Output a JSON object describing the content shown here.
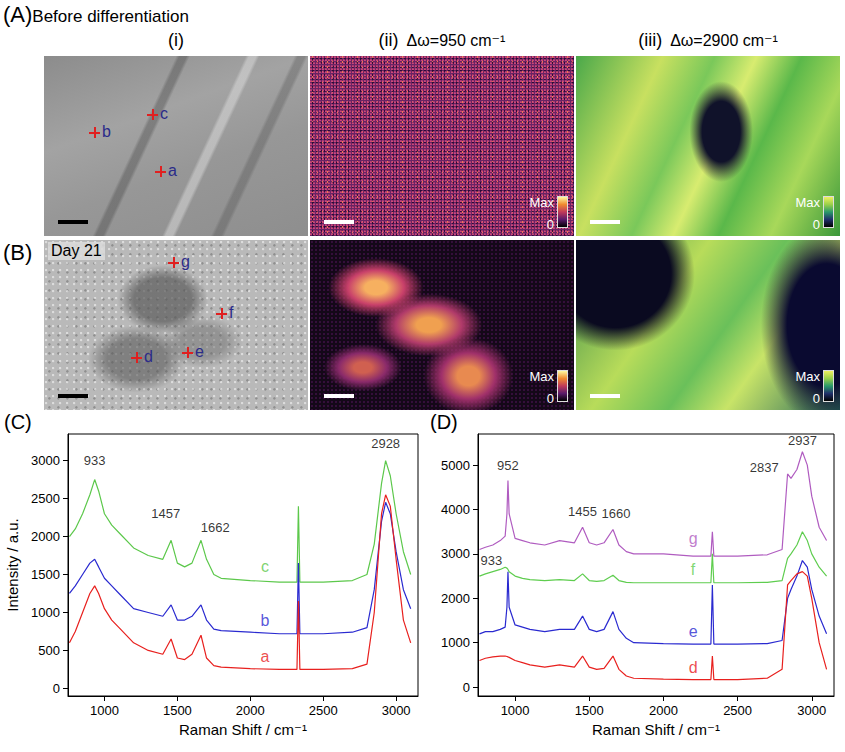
{
  "figure": {
    "rows": [
      {
        "letter": "(A)",
        "title": "Before differentiation",
        "points": [
          "b",
          "c",
          "a"
        ]
      },
      {
        "letter": "(B)",
        "title": "Day 21",
        "points": [
          "g",
          "f",
          "d",
          "e"
        ]
      }
    ],
    "columns": [
      {
        "head": "(i)"
      },
      {
        "head": "(ii)",
        "shift": "Δω=950 cm⁻¹",
        "colorbar": {
          "top": "Max",
          "bottom": 0
        }
      },
      {
        "head": "(iii)",
        "shift": "Δω=2900 cm⁻¹",
        "colorbar": {
          "top": "Max",
          "bottom": 0
        }
      }
    ]
  },
  "chart_data": [
    {
      "panel": "(C)",
      "type": "line",
      "xlabel": "Raman Shift / cm⁻¹",
      "ylabel": "Intensity / a.u.",
      "xlim": [
        750,
        3150
      ],
      "xticks": [
        1000,
        1500,
        2000,
        2500,
        3000
      ],
      "ylim": [
        -100,
        3350
      ],
      "yticks": [
        0,
        500,
        1000,
        1500,
        2000,
        2500,
        3000
      ],
      "grid": false,
      "x": [
        760,
        800,
        850,
        900,
        933,
        960,
        1000,
        1050,
        1100,
        1200,
        1300,
        1400,
        1457,
        1500,
        1550,
        1600,
        1662,
        1700,
        1750,
        1800,
        2000,
        2200,
        2320,
        2330,
        2340,
        2500,
        2700,
        2800,
        2850,
        2900,
        2928,
        2960,
        3000,
        3050,
        3100
      ],
      "series": [
        {
          "name": "c",
          "color": "#5cc84b",
          "label_x": 2100,
          "label_y": 1600,
          "values": [
            2000,
            2100,
            2300,
            2550,
            2750,
            2600,
            2300,
            2150,
            2050,
            1850,
            1750,
            1700,
            1950,
            1650,
            1600,
            1650,
            1950,
            1700,
            1500,
            1450,
            1420,
            1400,
            1400,
            2400,
            1400,
            1400,
            1420,
            1500,
            1900,
            2700,
            3000,
            2800,
            2300,
            1800,
            1500
          ]
        },
        {
          "name": "b",
          "color": "#2a2ad0",
          "label_x": 2100,
          "label_y": 900,
          "values": [
            1250,
            1350,
            1500,
            1650,
            1700,
            1600,
            1450,
            1350,
            1250,
            1050,
            1000,
            950,
            1100,
            900,
            900,
            950,
            1100,
            900,
            780,
            760,
            740,
            720,
            720,
            1650,
            720,
            720,
            740,
            800,
            1300,
            2200,
            2450,
            2300,
            1800,
            1300,
            1050
          ]
        },
        {
          "name": "a",
          "color": "#e8201e",
          "label_x": 2100,
          "label_y": 420,
          "values": [
            600,
            750,
            1000,
            1250,
            1350,
            1250,
            1050,
            900,
            800,
            600,
            500,
            450,
            650,
            400,
            380,
            450,
            700,
            400,
            300,
            280,
            260,
            250,
            250,
            1150,
            250,
            250,
            260,
            320,
            1000,
            2300,
            2550,
            2400,
            1700,
            900,
            600
          ]
        }
      ],
      "annotations": [
        {
          "text": "933",
          "x": 933,
          "y": 3000
        },
        {
          "text": "1457",
          "x": 1420,
          "y": 2300
        },
        {
          "text": "1662",
          "x": 1760,
          "y": 2120
        },
        {
          "text": "2928",
          "x": 2928,
          "y": 3220
        }
      ]
    },
    {
      "panel": "(D)",
      "type": "line",
      "xlabel": "Raman Shift / cm⁻¹",
      "xlim": [
        750,
        3150
      ],
      "xticks": [
        1000,
        1500,
        2000,
        2500,
        3000
      ],
      "ylim": [
        -200,
        5700
      ],
      "yticks": [
        0,
        1000,
        2000,
        3000,
        4000,
        5000
      ],
      "grid": false,
      "x": [
        760,
        800,
        850,
        900,
        933,
        945,
        952,
        960,
        1000,
        1050,
        1100,
        1200,
        1300,
        1400,
        1455,
        1500,
        1550,
        1600,
        1660,
        1700,
        1750,
        1800,
        2000,
        2200,
        2320,
        2330,
        2340,
        2500,
        2700,
        2800,
        2837,
        2860,
        2900,
        2937,
        2970,
        3000,
        3050,
        3100
      ],
      "series": [
        {
          "name": "g",
          "color": "#b05cc0",
          "label_x": 2200,
          "label_y": 3350,
          "values": [
            3100,
            3150,
            3200,
            3300,
            3400,
            3900,
            4650,
            3900,
            3350,
            3300,
            3250,
            3200,
            3300,
            3250,
            3600,
            3250,
            3200,
            3250,
            3550,
            3200,
            3050,
            3000,
            3000,
            2950,
            2950,
            3500,
            2950,
            2950,
            2980,
            3100,
            4800,
            4700,
            4900,
            5300,
            5000,
            4300,
            3600,
            3300
          ]
        },
        {
          "name": "f",
          "color": "#5fcd4f",
          "label_x": 2200,
          "label_y": 2650,
          "values": [
            2500,
            2550,
            2600,
            2650,
            2700,
            2680,
            2650,
            2600,
            2500,
            2450,
            2420,
            2400,
            2420,
            2400,
            2550,
            2400,
            2380,
            2400,
            2520,
            2400,
            2360,
            2350,
            2350,
            2350,
            2350,
            3000,
            2350,
            2350,
            2360,
            2400,
            2900,
            3000,
            3200,
            3500,
            3300,
            3000,
            2700,
            2500
          ]
        },
        {
          "name": "e",
          "color": "#2a2ad0",
          "label_x": 2200,
          "label_y": 1250,
          "values": [
            1200,
            1250,
            1250,
            1300,
            1350,
            1800,
            2600,
            1800,
            1400,
            1350,
            1300,
            1250,
            1300,
            1300,
            1600,
            1300,
            1250,
            1300,
            1700,
            1300,
            1100,
            1000,
            980,
            970,
            970,
            2300,
            970,
            970,
            980,
            1050,
            2000,
            2200,
            2500,
            2850,
            2700,
            2200,
            1600,
            1200
          ]
        },
        {
          "name": "d",
          "color": "#e8201e",
          "label_x": 2200,
          "label_y": 450,
          "values": [
            600,
            650,
            680,
            700,
            700,
            690,
            680,
            670,
            600,
            550,
            500,
            450,
            500,
            450,
            700,
            450,
            400,
            420,
            700,
            400,
            250,
            200,
            180,
            170,
            170,
            700,
            170,
            170,
            200,
            400,
            2300,
            2400,
            2550,
            2600,
            2500,
            2000,
            1000,
            400
          ]
        }
      ],
      "annotations": [
        {
          "text": "952",
          "x": 952,
          "y": 5000
        },
        {
          "text": "933",
          "x": 840,
          "y": 2850
        },
        {
          "text": "1455",
          "x": 1455,
          "y": 3950
        },
        {
          "text": "1660",
          "x": 1680,
          "y": 3900
        },
        {
          "text": "2837",
          "x": 2680,
          "y": 4950
        },
        {
          "text": "2937",
          "x": 2937,
          "y": 5550
        }
      ]
    }
  ]
}
